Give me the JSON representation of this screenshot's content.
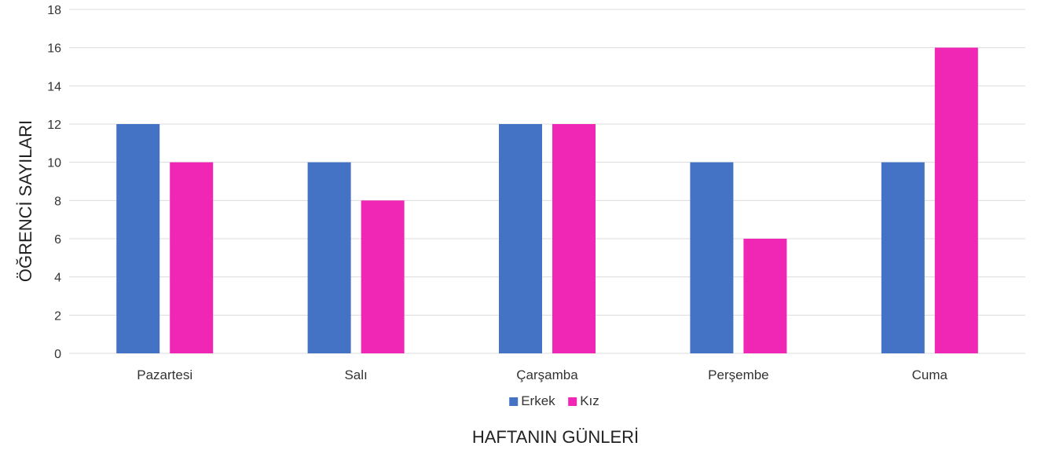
{
  "chart_data": {
    "type": "bar",
    "title": "",
    "xlabel": "HAFTANIN GÜNLERİ",
    "ylabel": "ÖĞRENCİ SAYILARI",
    "categories": [
      "Pazartesi",
      "Salı",
      "Çarşamba",
      "Perşembe",
      "Cuma"
    ],
    "series": [
      {
        "name": "Erkek",
        "color": "#4472c4",
        "values": [
          12,
          10,
          12,
          10,
          10
        ]
      },
      {
        "name": "Kız",
        "color": "#f026b4",
        "values": [
          10,
          8,
          12,
          6,
          16
        ]
      }
    ],
    "ylim": [
      0,
      18
    ],
    "yticks": [
      0,
      2,
      4,
      6,
      8,
      10,
      12,
      14,
      16,
      18
    ],
    "grid": true,
    "legend_position": "bottom"
  }
}
